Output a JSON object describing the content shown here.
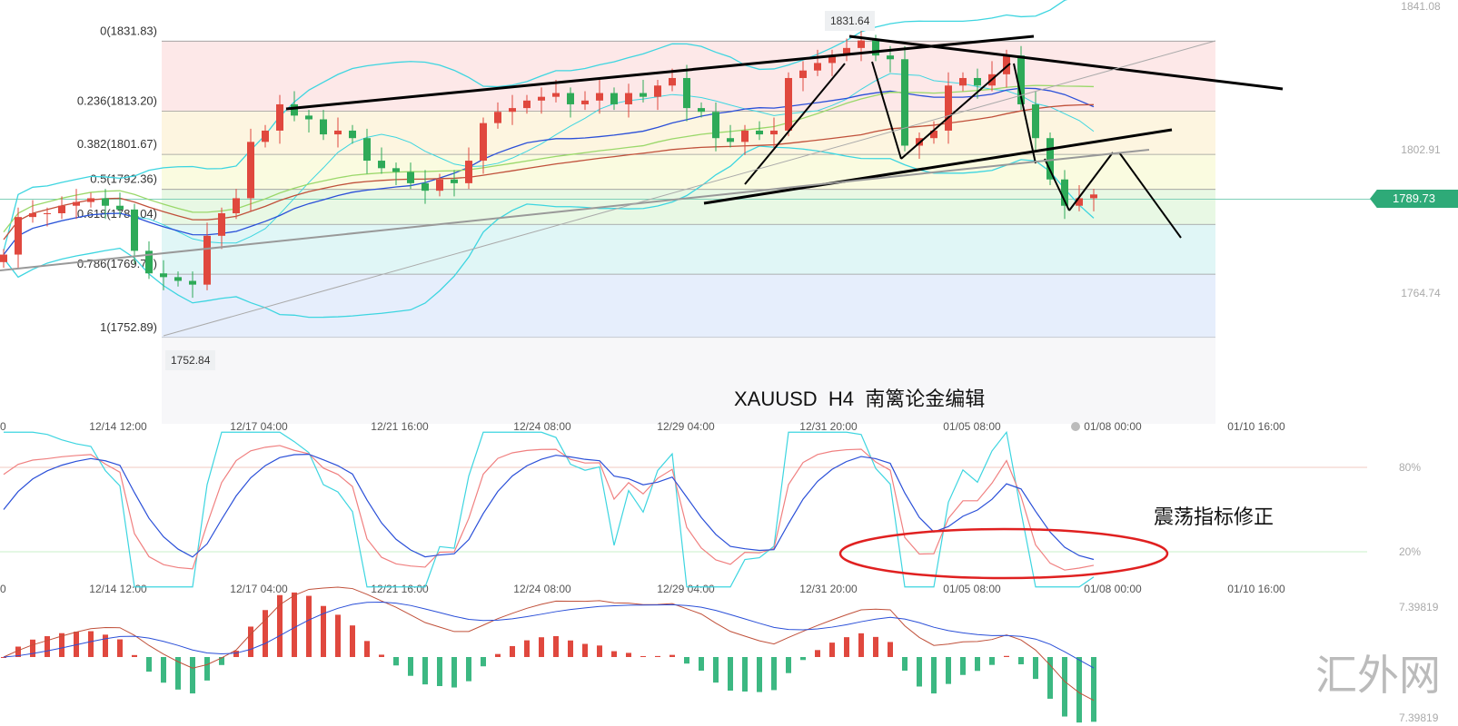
{
  "chart_data": {
    "type": "candlestick",
    "symbol_title": "XAUUSD  H4  南篱论金编辑",
    "closes": [
      1775,
      1785,
      1786,
      1786,
      1788,
      1789,
      1790,
      1788,
      1787,
      1776,
      1770,
      1769,
      1768,
      1767,
      1780,
      1786,
      1790,
      1805,
      1808,
      1815,
      1812,
      1811,
      1807,
      1808,
      1806,
      1800,
      1798,
      1797,
      1794,
      1792,
      1795,
      1794,
      1800,
      1810,
      1813,
      1814,
      1816,
      1817,
      1818,
      1815,
      1816,
      1818,
      1815,
      1818,
      1817,
      1820,
      1822,
      1814,
      1813,
      1806,
      1805,
      1808,
      1807,
      1808,
      1822,
      1824,
      1826,
      1828,
      1830,
      1832,
      1828,
      1827,
      1804,
      1806,
      1808,
      1820,
      1822,
      1820,
      1823,
      1828,
      1815,
      1806,
      1795,
      1788,
      1790,
      1791
    ],
    "price_axis": [
      "1841.08",
      "1802.91",
      "1764.74"
    ],
    "price_range": [
      1764.74,
      1841.08
    ],
    "current_price": "1789.73",
    "fib_levels": [
      {
        "label": "0(1831.83)",
        "price": 1831.83,
        "fill": "#fde8e8"
      },
      {
        "label": "0.236(1813.20)",
        "price": 1813.2,
        "fill": "#fdf5e0"
      },
      {
        "label": "0.382(1801.67)",
        "price": 1801.67,
        "fill": "#fafbe0"
      },
      {
        "label": "0.5(1792.36)",
        "price": 1792.36,
        "fill": "#e8f8e4"
      },
      {
        "label": "0.618(1783.04)",
        "price": 1783.04,
        "fill": "#e0f6f6"
      },
      {
        "label": "0.786(1769.78)",
        "price": 1769.78,
        "fill": "#e6eefc"
      },
      {
        "label": "1(1752.89)",
        "price": 1752.89,
        "fill": "#f0e8fc"
      }
    ],
    "high_marker": "1831.64",
    "low_marker": "1752.84",
    "time_labels": [
      "0",
      "12/14 12:00",
      "12/17 04:00",
      "12/21 16:00",
      "12/24 08:00",
      "12/29 04:00",
      "12/31 20:00",
      "01/05 08:00",
      "01/08 00:00",
      "01/10 16:00"
    ],
    "oscillator_axis": [
      "80%",
      "20%"
    ],
    "oscillator_note": "震荡指标修正",
    "macd_axis": [
      "7.39819",
      "7.39819"
    ],
    "colors": {
      "up": "#e0483e",
      "down": "#2eaa58",
      "price_tag": "#2eaa78",
      "ma_blue": "#2a4fd8",
      "ma_red": "#c0503a",
      "ma_green": "#9ad86a",
      "band": "#3dd5e0"
    }
  },
  "watermark": "汇外网"
}
